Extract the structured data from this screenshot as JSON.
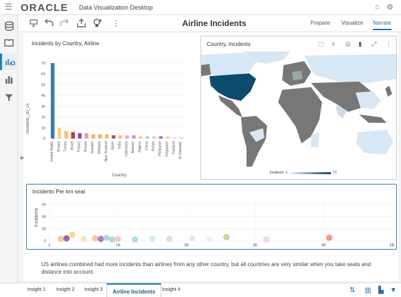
{
  "app": {
    "logo": "ORACLE",
    "title": "Data Visualization Desktop",
    "home_icon": "home-icon",
    "settings_icon": "gear-icon"
  },
  "toolbar": {
    "canvas_title": "Airline Incidents",
    "modes": [
      "Prepare",
      "Visualize",
      "Narrate"
    ],
    "active_mode": "Narrate"
  },
  "left_rail": {
    "icons": [
      "database-icon",
      "book-icon",
      "analytics-icon",
      "bar-chart-icon",
      "filter-icon"
    ],
    "active": "analytics-icon"
  },
  "card1": {
    "title": "Incidents by Country, Airline",
    "xlabel": "Country",
    "ylabel": "Incidents_00_14"
  },
  "card2": {
    "title": "Country, Incidents",
    "legend_label": "Incidents",
    "legend_min": "1",
    "legend_max": "71"
  },
  "card3": {
    "title": "Incidents Per km seat",
    "ylabel": "Incidents"
  },
  "narrative": "US airlines combined had more incidents than airlines from any other country, but all countries are very similar when you take seats and distance into account.",
  "bottom_tabs": [
    "Insight 1",
    "Insight 2",
    "Insight 3",
    "Airline Incidents",
    "Insight 4"
  ],
  "active_bottom_tab": "Airline Incidents",
  "chart_data": [
    {
      "type": "bar",
      "title": "Incidents by Country, Airline",
      "xlabel": "Country",
      "ylabel": "Incidents_00_14",
      "ylim": [
        0,
        70
      ],
      "yticks": [
        0,
        10,
        20,
        30,
        40,
        50,
        60,
        70
      ],
      "categories": [
        "United States",
        "Russia",
        "Turkey",
        "Brazil",
        "France",
        "Russia",
        "Sweden",
        "Ethiopia",
        "New Zealand",
        "Spain",
        "India",
        "Indonesia",
        "Bahrain",
        "Nigeria",
        "China",
        "Kenya",
        "Philippine",
        "Singapore",
        "Thailand",
        "El Salvador"
      ],
      "series": [
        {
          "values": [
            70,
            10,
            7,
            6,
            5,
            5,
            4,
            4,
            4,
            3,
            3,
            3,
            3,
            2,
            2,
            2,
            2,
            2,
            1,
            1
          ]
        }
      ],
      "colors": [
        "#3a7da8",
        "#f5d77a",
        "#f2c28c",
        "#c0392b",
        "#8e4c9e",
        "#e8a0a8",
        "#f4b183",
        "#f0b36b",
        "#e8c45a",
        "#a14f6a",
        "#f4c08a",
        "#e7a8c8",
        "#b5a0c8",
        "#f2d06b",
        "#a8c8e8",
        "#f0c0d0",
        "#9b6bb0",
        "#f2cf7c",
        "#d8d8d8",
        "#ead26a"
      ],
      "grid": true
    },
    {
      "type": "scatter",
      "title": "Incidents Per km seat",
      "ylabel": "Incidents",
      "xlim": [
        0,
        60
      ],
      "ylim": [
        0,
        70
      ],
      "xticks": [
        "0",
        "1B",
        "2B",
        "3B",
        "4B",
        "5B"
      ],
      "yticks": [
        0,
        20,
        40,
        60
      ],
      "points": [
        {
          "x": 2,
          "y": 3,
          "color": "#f4c08a"
        },
        {
          "x": 3,
          "y": 4,
          "color": "#8e4c9e"
        },
        {
          "x": 4,
          "y": 10,
          "color": "#f5d77a"
        },
        {
          "x": 6,
          "y": 3,
          "color": "#f5e6a8"
        },
        {
          "x": 8,
          "y": 4,
          "color": "#f2c28c"
        },
        {
          "x": 9,
          "y": 3,
          "color": "#9b6bb0"
        },
        {
          "x": 10,
          "y": 5,
          "color": "#a8c8e8"
        },
        {
          "x": 11,
          "y": 2,
          "color": "#a8d8a8"
        },
        {
          "x": 12,
          "y": 3,
          "color": "#f0c0d0"
        },
        {
          "x": 15,
          "y": 2,
          "color": "#a8d8e8"
        },
        {
          "x": 18,
          "y": 3,
          "color": "#c8e8f4"
        },
        {
          "x": 21,
          "y": 3,
          "color": "#d8d8d8"
        },
        {
          "x": 25,
          "y": 4,
          "color": "#d8e8f4"
        },
        {
          "x": 28,
          "y": 2,
          "color": "#e8f0f8"
        },
        {
          "x": 31,
          "y": 6,
          "color": "#b5d58a"
        },
        {
          "x": 38,
          "y": 2,
          "color": "#f0d0e0"
        },
        {
          "x": 49,
          "y": 5,
          "color": "#f08878"
        }
      ],
      "grid": true
    }
  ]
}
